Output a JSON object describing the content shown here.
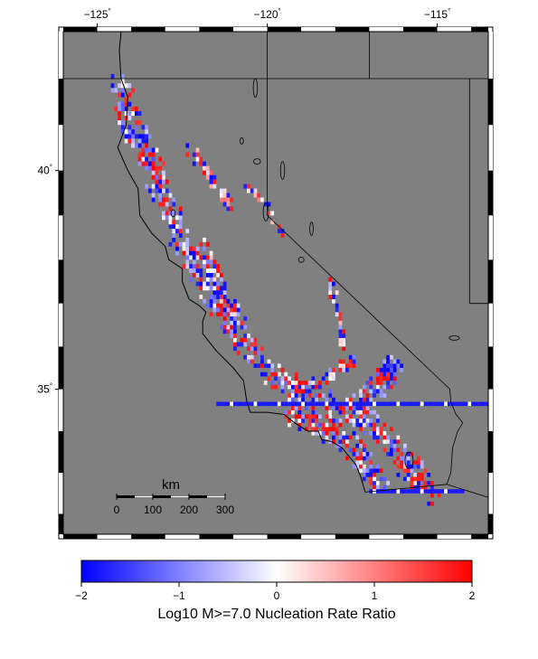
{
  "map": {
    "projection": "mercator",
    "lon_range": [
      -126,
      -113.5
    ],
    "lat_range": [
      31.5,
      43
    ],
    "background_color": "#808080",
    "frame": "checkered black-white border",
    "top_lon_ticks": [
      {
        "value": -125,
        "label": "−125",
        "deg": "°"
      },
      {
        "value": -120,
        "label": "−120",
        "deg": "°"
      },
      {
        "value": -115,
        "label": "−115",
        "deg": "°"
      }
    ],
    "left_lat_ticks": [
      {
        "value": 40,
        "label": "40",
        "deg": "°"
      },
      {
        "value": 35,
        "label": "35",
        "deg": "°"
      }
    ],
    "boundaries": [
      {
        "name": "or-ca-border",
        "points": [
          [
            -126,
            42.0
          ],
          [
            -120.0,
            42.0
          ]
        ]
      },
      {
        "name": "nv-west-line",
        "points": [
          [
            -120.0,
            43.0
          ],
          [
            -120.0,
            39.0
          ]
        ]
      },
      {
        "name": "ca-nv-diagonal",
        "points": [
          [
            -120.0,
            39.0
          ],
          [
            -114.63,
            35.0
          ]
        ]
      },
      {
        "name": "id-nv-border",
        "points": [
          [
            -120.0,
            42.0
          ],
          [
            -113.5,
            42.0
          ]
        ]
      },
      {
        "name": "or-id-line",
        "points": [
          [
            -117.0,
            43.0
          ],
          [
            -117.0,
            42.0
          ]
        ]
      },
      {
        "name": "nv-ut-line",
        "points": [
          [
            -114.05,
            42.0
          ],
          [
            -114.05,
            37.0
          ]
        ]
      },
      {
        "name": "ut-az-line",
        "points": [
          [
            -114.05,
            37.0
          ],
          [
            -113.5,
            37.0
          ]
        ]
      },
      {
        "name": "colorado-river",
        "points": [
          [
            -114.63,
            35.0
          ],
          [
            -114.6,
            34.7
          ],
          [
            -114.45,
            34.4
          ],
          [
            -114.25,
            34.2
          ],
          [
            -114.4,
            34.0
          ],
          [
            -114.55,
            33.6
          ],
          [
            -114.6,
            33.0
          ],
          [
            -114.72,
            32.72
          ]
        ]
      },
      {
        "name": "mexico-border",
        "points": [
          [
            -117.12,
            32.53
          ],
          [
            -114.72,
            32.72
          ],
          [
            -113.5,
            32.4
          ]
        ]
      }
    ],
    "coastline": [
      [
        -124.3,
        43.0
      ],
      [
        -124.35,
        42.6
      ],
      [
        -124.3,
        42.0
      ],
      [
        -124.1,
        41.6
      ],
      [
        -124.15,
        41.0
      ],
      [
        -124.4,
        40.5
      ],
      [
        -124.1,
        40.0
      ],
      [
        -123.8,
        39.6
      ],
      [
        -123.75,
        39.0
      ],
      [
        -123.4,
        38.6
      ],
      [
        -123.0,
        38.3
      ],
      [
        -122.9,
        38.0
      ],
      [
        -122.5,
        37.8
      ],
      [
        -122.5,
        37.5
      ],
      [
        -122.3,
        37.1
      ],
      [
        -122.0,
        36.95
      ],
      [
        -121.8,
        36.8
      ],
      [
        -121.9,
        36.6
      ],
      [
        -121.9,
        36.3
      ],
      [
        -121.5,
        35.9
      ],
      [
        -121.0,
        35.5
      ],
      [
        -120.7,
        35.2
      ],
      [
        -120.6,
        34.7
      ],
      [
        -120.5,
        34.45
      ],
      [
        -120.0,
        34.45
      ],
      [
        -119.5,
        34.4
      ],
      [
        -119.2,
        34.2
      ],
      [
        -118.8,
        34.0
      ],
      [
        -118.5,
        34.0
      ],
      [
        -118.4,
        33.8
      ],
      [
        -118.1,
        33.75
      ],
      [
        -117.8,
        33.6
      ],
      [
        -117.4,
        33.2
      ],
      [
        -117.25,
        32.9
      ],
      [
        -117.12,
        32.53
      ]
    ],
    "lakes": [
      {
        "name": "lake-tahoe",
        "cx": -120.04,
        "cy": 39.08,
        "rx": 0.08,
        "ry": 0.2
      },
      {
        "name": "salton-sea",
        "cx": -115.83,
        "cy": 33.3,
        "rx": 0.12,
        "ry": 0.2
      },
      {
        "name": "pyramid-lake",
        "cx": -119.55,
        "cy": 40.0,
        "rx": 0.06,
        "ry": 0.2
      },
      {
        "name": "walker-lake",
        "cx": -118.7,
        "cy": 38.7,
        "rx": 0.05,
        "ry": 0.15
      },
      {
        "name": "mono-lake",
        "cx": -119.0,
        "cy": 38.0,
        "rx": 0.08,
        "ry": 0.06
      },
      {
        "name": "goose-lake",
        "cx": -120.35,
        "cy": 41.8,
        "rx": 0.06,
        "ry": 0.2
      },
      {
        "name": "honey-lake",
        "cx": -120.3,
        "cy": 40.2,
        "rx": 0.1,
        "ry": 0.06
      },
      {
        "name": "eagle-lake",
        "cx": -120.75,
        "cy": 40.65,
        "rx": 0.05,
        "ry": 0.07
      },
      {
        "name": "clear-lake",
        "cx": -122.77,
        "cy": 39.05,
        "rx": 0.06,
        "ry": 0.08
      },
      {
        "name": "lake-mead",
        "cx": -114.5,
        "cy": 36.2,
        "rx": 0.15,
        "ry": 0.05
      }
    ],
    "color_scale": {
      "neg": "#0000ff",
      "mid": "#ffffff",
      "pos": "#ff0000",
      "min": -2,
      "max": 2
    }
  },
  "scale_bar": {
    "title": "km",
    "ticks": [
      "0",
      "100",
      "200",
      "300"
    ]
  },
  "colorbar": {
    "ticks": [
      {
        "value": -2,
        "label": "−2"
      },
      {
        "value": -1,
        "label": "−1"
      },
      {
        "value": 0,
        "label": "0"
      },
      {
        "value": 1,
        "label": "1"
      },
      {
        "value": 2,
        "label": "2"
      }
    ],
    "title": "Log10 M>=7.0 Nucleation Rate Ratio",
    "colors": [
      "#0000ff",
      "#ffffff",
      "#ff0000"
    ]
  },
  "chart_data": {
    "type": "heatmap",
    "title": "",
    "value_label": "Log10 M>=7.0 Nucleation Rate Ratio",
    "value_range": [
      -2,
      2
    ],
    "cell_size_deg": 0.1,
    "fault_zones": [
      {
        "name": "northern-coast",
        "path": [
          [
            -124.4,
            41.8
          ],
          [
            -124.0,
            40.9
          ],
          [
            -123.6,
            40.3
          ],
          [
            -123.1,
            39.4
          ],
          [
            -122.7,
            38.6
          ],
          [
            -122.3,
            37.9
          ]
        ],
        "width": 0.35,
        "value": -0.6
      },
      {
        "name": "san-andreas-central",
        "path": [
          [
            -122.3,
            37.9
          ],
          [
            -121.5,
            36.9
          ],
          [
            -120.7,
            36.0
          ],
          [
            -119.9,
            35.3
          ],
          [
            -119.0,
            34.9
          ],
          [
            -118.0,
            34.5
          ],
          [
            -116.9,
            34.1
          ],
          [
            -116.2,
            33.5
          ],
          [
            -115.6,
            32.9
          ]
        ],
        "width": 0.3,
        "value": -0.5
      },
      {
        "name": "eastern-bay",
        "path": [
          [
            -122.0,
            38.3
          ],
          [
            -121.4,
            37.2
          ],
          [
            -120.9,
            36.6
          ]
        ],
        "width": 0.2,
        "value": -0.3
      },
      {
        "name": "garlock-west",
        "path": [
          [
            -119.2,
            34.9
          ],
          [
            -118.3,
            35.2
          ],
          [
            -117.6,
            35.6
          ]
        ],
        "width": 0.15,
        "value": -0.4
      },
      {
        "name": "owens-valley",
        "path": [
          [
            -118.2,
            37.5
          ],
          [
            -118.0,
            36.8
          ],
          [
            -117.8,
            36.0
          ]
        ],
        "width": 0.12,
        "value": -0.2
      },
      {
        "name": "sierra-east",
        "path": [
          [
            -120.7,
            39.6
          ],
          [
            -120.1,
            39.2
          ],
          [
            -119.6,
            38.5
          ]
        ],
        "width": 0.12,
        "value": 0.3
      },
      {
        "name": "la-basin",
        "path": [
          [
            -119.3,
            34.4
          ],
          [
            -118.5,
            34.1
          ],
          [
            -117.8,
            33.8
          ],
          [
            -117.3,
            33.3
          ],
          [
            -116.8,
            32.8
          ]
        ],
        "width": 0.35,
        "value": -0.6
      },
      {
        "name": "mojave-ecsz",
        "path": [
          [
            -117.3,
            34.6
          ],
          [
            -116.8,
            35.0
          ],
          [
            -116.4,
            35.4
          ]
        ],
        "width": 0.35,
        "value": -0.9
      },
      {
        "name": "northern-sierra-foothills",
        "path": [
          [
            -122.3,
            40.4
          ],
          [
            -121.8,
            39.9
          ],
          [
            -121.2,
            39.2
          ]
        ],
        "width": 0.15,
        "value": 0.5
      },
      {
        "name": "imperial",
        "path": [
          [
            -116.0,
            33.0
          ],
          [
            -115.6,
            32.7
          ],
          [
            -115.2,
            32.4
          ]
        ],
        "width": 0.25,
        "value": -0.1
      }
    ],
    "linear_strips": [
      {
        "name": "transverse-strip",
        "lat": 34.6,
        "lon_start": -121.5,
        "lon_end": -113.5,
        "value": -1.8
      },
      {
        "name": "border-strip",
        "lat": 32.5,
        "lon_start": -117.0,
        "lon_end": -114.2,
        "value": -1.8
      }
    ]
  }
}
